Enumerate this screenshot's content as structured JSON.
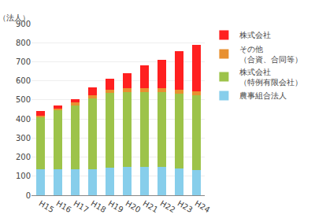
{
  "chart_data": {
    "type": "bar",
    "stacked": true,
    "categories": [
      "H15",
      "H16",
      "H17",
      "H18",
      "H19",
      "H20",
      "H21",
      "H22",
      "H23",
      "H24"
    ],
    "series": [
      {
        "name": "農事組合法人",
        "color": "#87CEEB",
        "values": [
          138,
          138,
          138,
          138,
          145,
          148,
          148,
          148,
          140,
          132
        ]
      },
      {
        "name": "株式会社\n（特例有限会社）",
        "color": "#9DC34A",
        "values": [
          270,
          308,
          333,
          370,
          390,
          392,
          392,
          392,
          393,
          393
        ]
      },
      {
        "name": "その他\n（合資、合同等）",
        "color": "#E89030",
        "values": [
          10,
          10,
          15,
          15,
          18,
          22,
          22,
          22,
          22,
          22
        ]
      },
      {
        "name": "株式会社",
        "color": "#FF2020",
        "values": [
          22,
          14,
          18,
          43,
          57,
          78,
          118,
          148,
          200,
          243
        ]
      }
    ],
    "ylabel": "（法人）",
    "ylim": [
      0,
      900
    ],
    "yticks": [
      0,
      100,
      200,
      300,
      400,
      500,
      600,
      700,
      800,
      900
    ],
    "grid": true,
    "legend": "right"
  }
}
